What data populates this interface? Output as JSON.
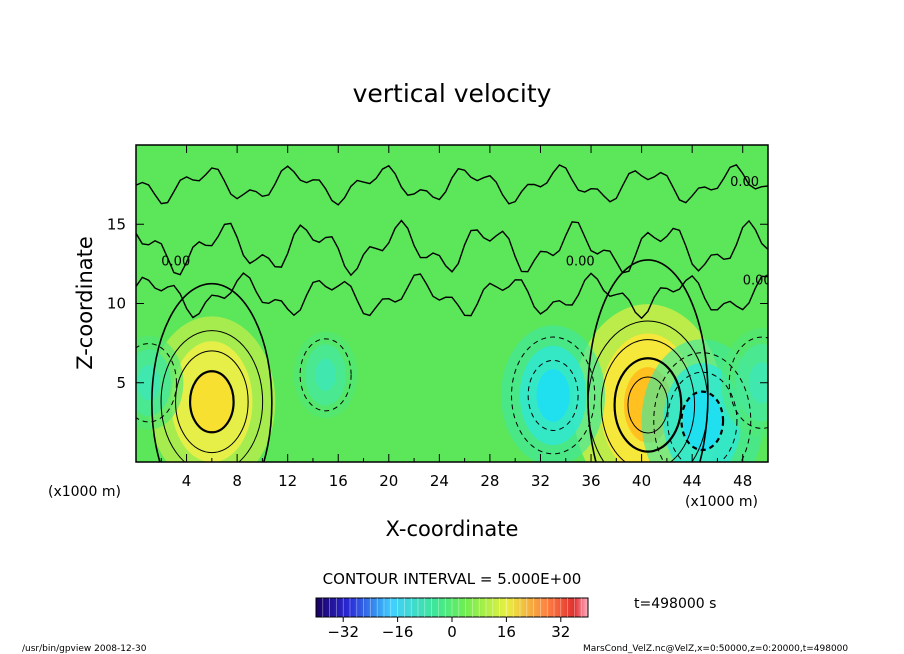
{
  "chart_data": {
    "type": "heatmap",
    "title": "vertical velocity",
    "xlabel": "X-coordinate",
    "ylabel": "Z-coordinate",
    "x_unit_left": "(x1000 m)",
    "x_unit_right": "(x1000 m)",
    "xlim": [
      0,
      50
    ],
    "ylim": [
      0,
      20
    ],
    "x_ticks": [
      4,
      8,
      12,
      16,
      20,
      24,
      28,
      32,
      36,
      40,
      44,
      48
    ],
    "y_ticks": [
      5,
      10,
      15
    ],
    "contour_interval_text": "CONTOUR INTERVAL = 5.000E+00",
    "contour_zero_label": "0.00",
    "time_text": "t=498000 s",
    "colorbar": {
      "min": -40,
      "max": 40,
      "tick_values": [
        -32,
        -16,
        0,
        16,
        32
      ],
      "tick_labels": [
        "−32",
        "−16",
        "0",
        "16",
        "32"
      ]
    },
    "features": [
      {
        "kind": "updraft",
        "x": 6,
        "z": 3.8,
        "peak": 16
      },
      {
        "kind": "updraft",
        "x": 40.5,
        "z": 3.6,
        "peak": 20
      },
      {
        "kind": "downdraft",
        "x": 33,
        "z": 4.2,
        "peak": -12
      },
      {
        "kind": "downdraft",
        "x": 44.8,
        "z": 2.6,
        "peak": -15
      },
      {
        "kind": "downdraft",
        "x": 1,
        "z": 5,
        "peak": -6
      },
      {
        "kind": "downdraft",
        "x": 49.5,
        "z": 5,
        "peak": -8
      },
      {
        "kind": "downdraft",
        "x": 15,
        "z": 5.5,
        "peak": -5
      }
    ]
  },
  "footer": {
    "left": "/usr/bin/gpview   2008-12-30",
    "right": "MarsCond_VelZ.nc@VelZ,x=0:50000,z=0:20000,t=498000"
  }
}
